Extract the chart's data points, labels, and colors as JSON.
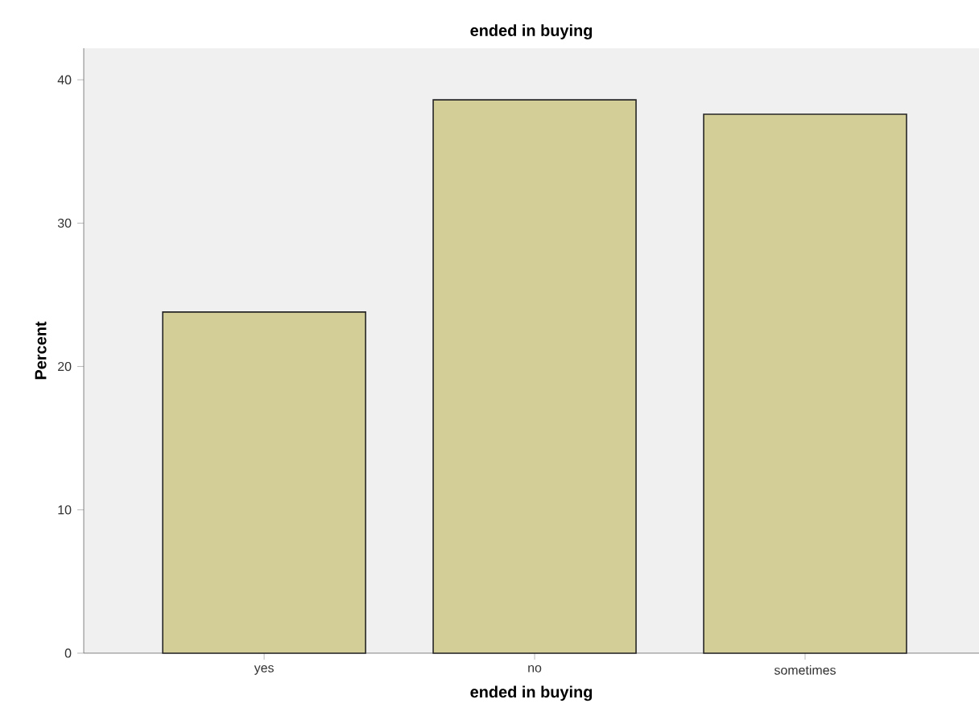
{
  "chart_data": {
    "type": "bar",
    "title": "ended in buying",
    "xlabel": "ended in buying",
    "ylabel": "Percent",
    "categories": [
      "yes",
      "no",
      "sometimes"
    ],
    "values": [
      23.8,
      38.6,
      37.6
    ],
    "color": "#d3ce97",
    "ylim": [
      0,
      42.2
    ],
    "yticks": [
      0,
      10,
      20,
      30,
      40
    ],
    "grid": false
  }
}
